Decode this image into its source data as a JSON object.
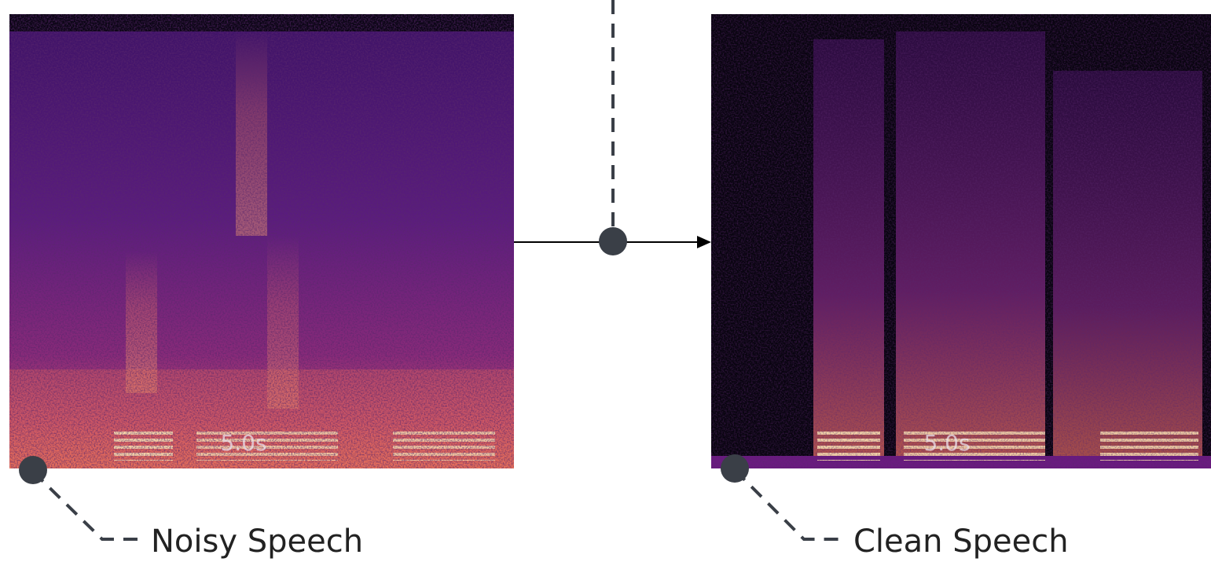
{
  "panels": [
    {
      "label": "Noisy Speech",
      "duration": "5.0s"
    },
    {
      "label": "Clean Speech",
      "duration": "5.0s"
    }
  ]
}
